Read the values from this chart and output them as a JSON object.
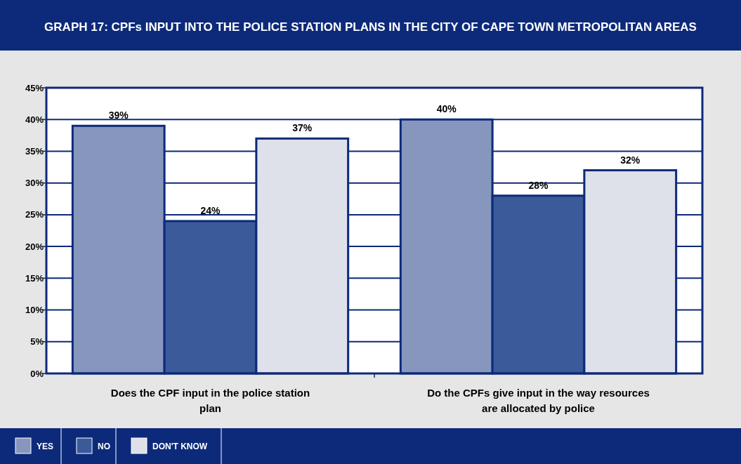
{
  "chart_data": {
    "type": "bar",
    "title": "GRAPH 17: CPFs INPUT INTO THE POLICE STATION PLANS IN THE CITY OF CAPE TOWN METROPOLITAN AREAS",
    "categories": [
      "Does the CPF input in the police station plan",
      "Do the CPFs give input in the way resources are allocated by police"
    ],
    "series": [
      {
        "name": "YES",
        "color": "#8796bd",
        "values": [
          39,
          40
        ],
        "value_labels": [
          "39%",
          "40%"
        ]
      },
      {
        "name": "NO",
        "color": "#3a5a9a",
        "values": [
          24,
          28
        ],
        "value_labels": [
          "24%",
          "28%"
        ]
      },
      {
        "name": "DON'T KNOW",
        "color": "#dfe1ea",
        "values": [
          37,
          32
        ],
        "value_labels": [
          "37%",
          "32%"
        ]
      }
    ],
    "ylim": [
      0,
      45
    ],
    "yticks": [
      {
        "value": 0,
        "label": "0%"
      },
      {
        "value": 5,
        "label": "5%"
      },
      {
        "value": 10,
        "label": "10%"
      },
      {
        "value": 15,
        "label": "15%"
      },
      {
        "value": 20,
        "label": "20%"
      },
      {
        "value": 25,
        "label": "25%"
      },
      {
        "value": 30,
        "label": "30%"
      },
      {
        "value": 35,
        "label": "35%"
      },
      {
        "value": 40,
        "label": "40%"
      },
      {
        "value": 45,
        "label": "45%"
      }
    ],
    "grid": "y",
    "legend": "bottom"
  }
}
